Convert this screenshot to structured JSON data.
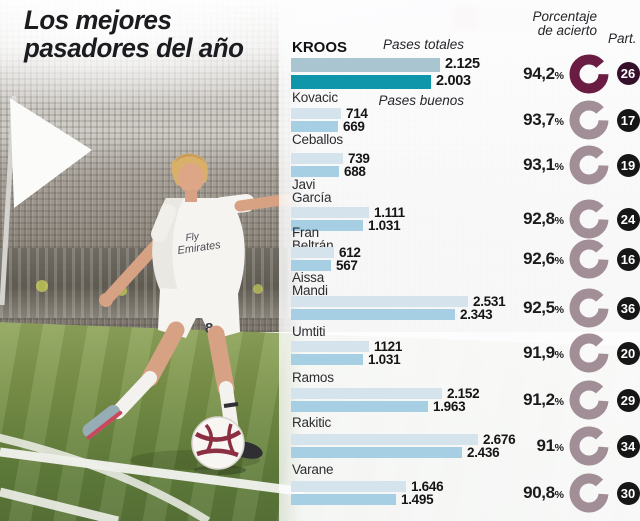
{
  "title": {
    "line1": "Los mejores",
    "line2": "pasadores del año"
  },
  "legend": {
    "totales": "Pases totales",
    "buenos": "Pases buenos"
  },
  "columns": {
    "pct_line1": "Porcentaje",
    "pct_line2": "de acierto",
    "part": "Part.",
    "percent_sign": "%"
  },
  "photo": {
    "jersey_line1": "Fly",
    "jersey_line2": "Emirates",
    "shorts_number": "8"
  },
  "colors": {
    "bar_totales": "#d5e4ec",
    "bar_buenos": "#a7cfe3",
    "kroos_bar_totales": "#a9c6d0",
    "kroos_bar_buenos": "#0f96aa",
    "ring": "#a28e96",
    "ring_highlight": "#6b1c42",
    "badge": "#161616",
    "badge_highlight": "#36102a",
    "ball_accent": "#8c2f42"
  },
  "chart_data": {
    "type": "bar",
    "orientation": "horizontal",
    "title": "Los mejores pasadores del año",
    "series_labels": [
      "Pases totales",
      "Pases buenos"
    ],
    "extra_columns": [
      "Porcentaje de acierto",
      "Part."
    ],
    "players": [
      {
        "name_lines": [
          "KROOS"
        ],
        "totales": 2125,
        "totales_label": "2.125",
        "buenos": 2003,
        "buenos_label": "2.003",
        "pct": 94.2,
        "pct_label": "94,2",
        "part": "26",
        "highlight": true
      },
      {
        "name_lines": [
          "Kovacic"
        ],
        "totales": 714,
        "totales_label": "714",
        "buenos": 669,
        "buenos_label": "669",
        "pct": 93.7,
        "pct_label": "93,7",
        "part": "17",
        "highlight": false
      },
      {
        "name_lines": [
          "Ceballos"
        ],
        "totales": 739,
        "totales_label": "739",
        "buenos": 688,
        "buenos_label": "688",
        "pct": 93.1,
        "pct_label": "93,1",
        "part": "19",
        "highlight": false
      },
      {
        "name_lines": [
          "Javi",
          "García"
        ],
        "totales": 1111,
        "totales_label": "1.111",
        "buenos": 1031,
        "buenos_label": "1.031",
        "pct": 92.8,
        "pct_label": "92,8",
        "part": "24",
        "highlight": false
      },
      {
        "name_lines": [
          "Fran",
          "Beltrán"
        ],
        "totales": 612,
        "totales_label": "612",
        "buenos": 567,
        "buenos_label": "567",
        "pct": 92.6,
        "pct_label": "92,6",
        "part": "16",
        "highlight": false
      },
      {
        "name_lines": [
          "Aissa",
          "Mandi"
        ],
        "totales": 2531,
        "totales_label": "2.531",
        "buenos": 2343,
        "buenos_label": "2.343",
        "pct": 92.5,
        "pct_label": "92,5",
        "part": "36",
        "highlight": false
      },
      {
        "name_lines": [
          "Umtiti"
        ],
        "totales": 1121,
        "totales_label": "1121",
        "buenos": 1031,
        "buenos_label": "1.031",
        "pct": 91.9,
        "pct_label": "91,9",
        "part": "20",
        "highlight": false
      },
      {
        "name_lines": [
          "Ramos"
        ],
        "totales": 2152,
        "totales_label": "2.152",
        "buenos": 1963,
        "buenos_label": "1.963",
        "pct": 91.2,
        "pct_label": "91,2",
        "part": "29",
        "highlight": false
      },
      {
        "name_lines": [
          "Rakitic"
        ],
        "totales": 2676,
        "totales_label": "2.676",
        "buenos": 2436,
        "buenos_label": "2.436",
        "pct": 91.0,
        "pct_label": "91",
        "part": "34",
        "highlight": false
      },
      {
        "name_lines": [
          "Varane"
        ],
        "totales": 1646,
        "totales_label": "1.646",
        "buenos": 1495,
        "buenos_label": "1.495",
        "pct": 90.8,
        "pct_label": "90,8",
        "part": "30",
        "highlight": false
      }
    ]
  }
}
